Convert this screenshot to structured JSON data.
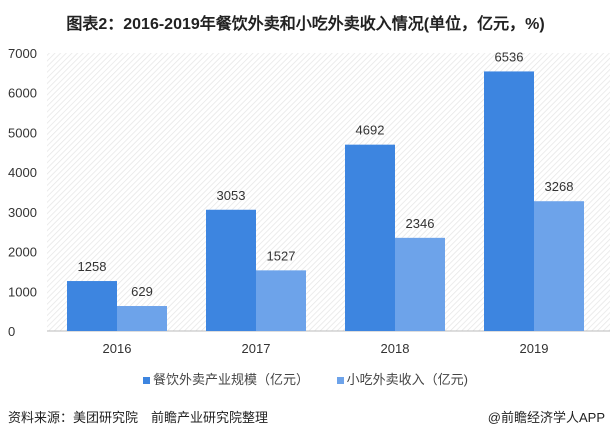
{
  "chart_data": {
    "type": "bar",
    "title": "图表2：2016-2019年餐饮外卖和小吃外卖收入情况(单位，亿元，%)",
    "categories": [
      "2016",
      "2017",
      "2018",
      "2019"
    ],
    "series": [
      {
        "name": "餐饮外卖产业规模（亿元）",
        "values": [
          1258,
          3053,
          4692,
          6536
        ],
        "color": "#3D85E0"
      },
      {
        "name": "小吃外卖收入（亿元)",
        "values": [
          629,
          1527,
          2346,
          3268
        ],
        "color": "#6DA3EA"
      }
    ],
    "ylim": [
      0,
      7000
    ],
    "yticks": [
      0,
      1000,
      2000,
      3000,
      4000,
      5000,
      6000,
      7000
    ],
    "legend": "bottom",
    "grid": false
  },
  "source": "资料来源：美团研究院　前瞻产业研究院整理",
  "credit": "@前瞻经济学人APP"
}
